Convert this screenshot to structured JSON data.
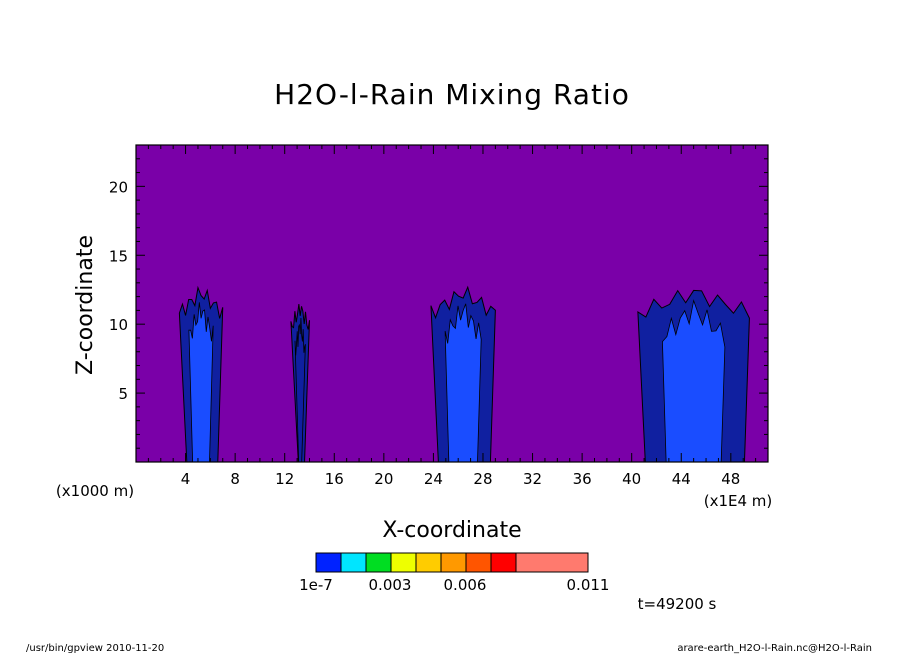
{
  "chart_data": {
    "type": "contour",
    "title": "H2O-l-Rain Mixing Ratio",
    "xlabel": "X-coordinate",
    "ylabel": "Z-coordinate",
    "x_unit_left": "(x1000 m)",
    "x_unit_right": "(x1E4 m)",
    "x_ticks": [
      "4",
      "8",
      "12",
      "16",
      "20",
      "24",
      "28",
      "32",
      "36",
      "40",
      "44",
      "48"
    ],
    "y_ticks": [
      "5",
      "10",
      "15",
      "20"
    ],
    "xlim": [
      0,
      51
    ],
    "ylim": [
      0,
      23
    ],
    "background_color": "#7a00a8",
    "levels": [
      "1e-7",
      "0.003",
      "0.006",
      "0.011"
    ],
    "colorbar_colors": [
      "#0022ff",
      "#00e5ff",
      "#00dd22",
      "#eeff00",
      "#ffcc00",
      "#ff9900",
      "#ff5500",
      "#ff0000",
      "#ff7a6e"
    ],
    "cells": [
      {
        "x_range": [
          3.5,
          7.0
        ],
        "top": 12.3,
        "color_outer": "#1020a0",
        "color_inner": "#1a4dff"
      },
      {
        "x_range": [
          12.5,
          14.0
        ],
        "top": 11.2,
        "color_outer": "#1020a0",
        "color_inner": "#1020a0"
      },
      {
        "x_range": [
          23.8,
          29.0
        ],
        "top": 12.3,
        "color_outer": "#1020a0",
        "color_inner": "#1a4dff"
      },
      {
        "x_range": [
          40.5,
          49.5
        ],
        "top": 12.3,
        "color_outer": "#1020a0",
        "color_inner": "#1a4dff"
      }
    ],
    "time_label": "t=49200 s"
  },
  "footer": {
    "left": "/usr/bin/gpview  2010-11-20",
    "right": "arare-earth_H2O-l-Rain.nc@H2O-l-Rain"
  }
}
